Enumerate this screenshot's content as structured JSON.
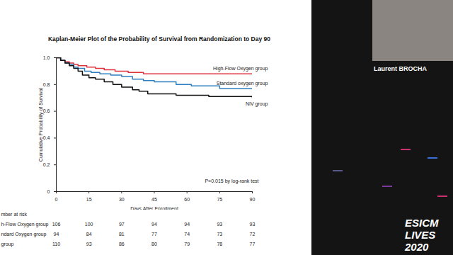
{
  "chart_data": {
    "type": "line",
    "title": "Kaplan-Meier Plot of the Probability of Survival from Randomization to Day 90",
    "x_label": "Days After Enrollment",
    "y_label": "Cumulative Probability of Survival",
    "xlim": [
      0,
      90
    ],
    "xticks": [
      0,
      15,
      30,
      45,
      60,
      75,
      90
    ],
    "ylim": [
      0,
      1
    ],
    "yticks": [
      0,
      0.2,
      0.4,
      0.6,
      0.8,
      {
        "value": 1,
        "label": "1.0"
      }
    ],
    "line_style": "step",
    "annotation": "P=0.015 by log-rank test",
    "series": [
      {
        "name": "High-Flow Oxygen group",
        "color": "#e0303a",
        "x": [
          0,
          2,
          4,
          6,
          8,
          10,
          14,
          18,
          22,
          27,
          33,
          40,
          50,
          90
        ],
        "values": [
          1,
          0.98,
          0.97,
          0.96,
          0.95,
          0.94,
          0.93,
          0.92,
          0.91,
          0.9,
          0.89,
          0.88,
          0.88,
          0.88
        ]
      },
      {
        "name": "Standard oxygen group",
        "color": "#2f7fc0",
        "x": [
          0,
          2,
          4,
          6,
          8,
          10,
          13,
          16,
          20,
          25,
          30,
          35,
          40,
          45,
          55,
          62,
          75,
          90
        ],
        "values": [
          1,
          0.98,
          0.96,
          0.95,
          0.93,
          0.92,
          0.9,
          0.89,
          0.88,
          0.87,
          0.86,
          0.84,
          0.83,
          0.82,
          0.8,
          0.79,
          0.77,
          0.77
        ]
      },
      {
        "name": "NIV group",
        "color": "#111111",
        "x": [
          0,
          2,
          4,
          6,
          8,
          10,
          12,
          15,
          18,
          22,
          26,
          30,
          35,
          38,
          42,
          55,
          70,
          90
        ],
        "values": [
          1,
          0.98,
          0.96,
          0.94,
          0.92,
          0.9,
          0.87,
          0.85,
          0.84,
          0.82,
          0.8,
          0.78,
          0.76,
          0.75,
          0.73,
          0.72,
          0.71,
          0.7
        ]
      }
    ],
    "at_risk": {
      "title": "mber at risk",
      "x": [
        0,
        15,
        30,
        45,
        60,
        75,
        90
      ],
      "rows": [
        {
          "name": "h-Flow Oxygen group",
          "values": [
            106,
            100,
            97,
            94,
            94,
            93,
            93
          ]
        },
        {
          "name": "ndard Oxygen group",
          "values": [
            94,
            84,
            81,
            77,
            74,
            73,
            72
          ]
        },
        {
          "name": "group",
          "values": [
            110,
            93,
            86,
            80,
            79,
            78,
            77
          ]
        }
      ]
    }
  },
  "speaker": "Laurent BROCHA",
  "event": [
    "ESICM",
    "LIVES",
    "2020"
  ]
}
